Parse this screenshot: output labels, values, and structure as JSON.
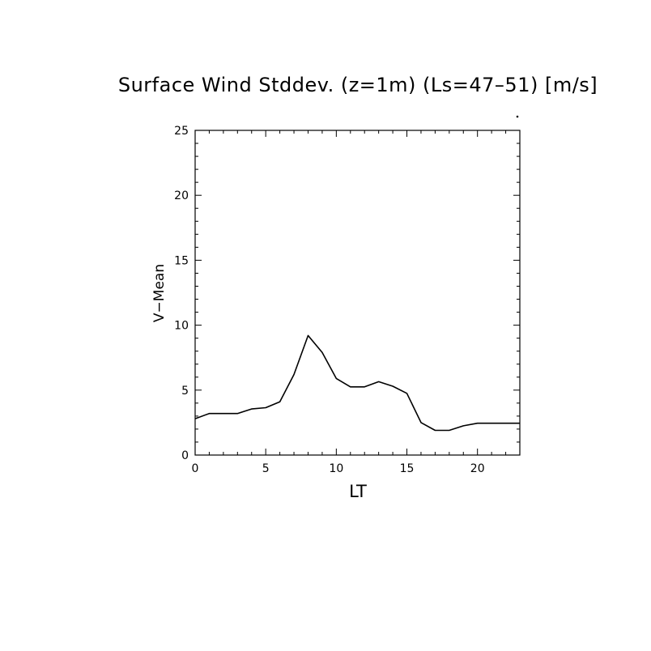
{
  "chart_data": {
    "type": "line",
    "title": "Surface Wind Stddev. (z=1m) (Ls=47–51) [m/s]",
    "xlabel": "LT",
    "ylabel": "V−Mean",
    "xlim": [
      0,
      23
    ],
    "ylim": [
      0,
      25
    ],
    "x_ticks": [
      0,
      5,
      10,
      15,
      20
    ],
    "y_ticks": [
      0,
      5,
      10,
      15,
      20,
      25
    ],
    "grid": false,
    "line_color": "#000000",
    "series": [
      {
        "x": [
          0,
          1,
          2,
          3,
          4,
          5,
          6,
          7,
          8,
          9,
          10,
          11,
          12,
          13,
          14,
          15,
          16,
          17,
          18,
          19,
          20,
          21,
          22,
          23
        ],
        "values": [
          2.8,
          3.2,
          3.2,
          3.2,
          3.55,
          3.65,
          4.1,
          6.2,
          9.2,
          7.9,
          5.9,
          5.25,
          5.25,
          5.65,
          5.3,
          4.75,
          2.5,
          1.9,
          1.9,
          2.25,
          2.45,
          2.45,
          2.45,
          2.45
        ]
      }
    ]
  }
}
